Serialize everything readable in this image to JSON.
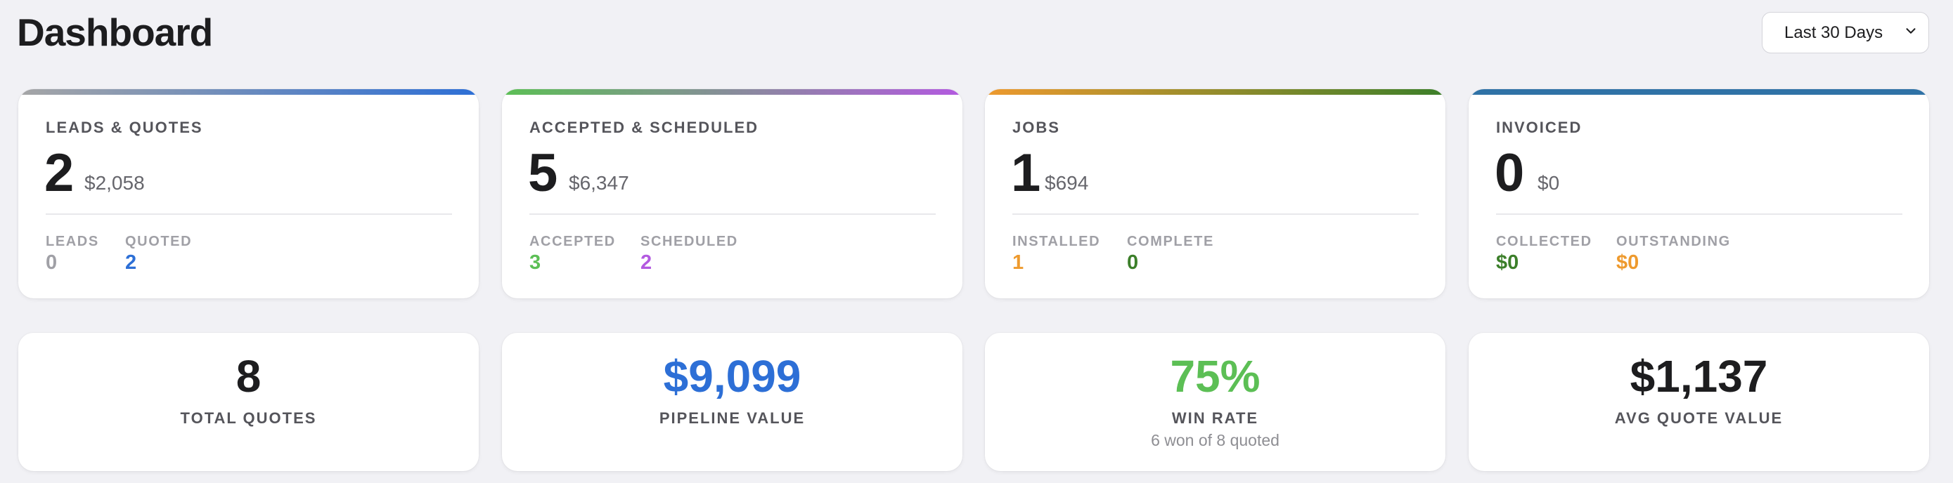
{
  "header": {
    "title": "Dashboard",
    "date_range": {
      "selected": "Last 30 Days"
    }
  },
  "stages": [
    {
      "title": "LEADS & QUOTES",
      "count": "2",
      "amount": "$2,058",
      "sub": [
        {
          "label": "LEADS",
          "value": "0",
          "color": "#a0a0a6"
        },
        {
          "label": "QUOTED",
          "value": "2",
          "color": "#2d6fd6"
        }
      ]
    },
    {
      "title": "ACCEPTED & SCHEDULED",
      "count": "5",
      "amount": "$6,347",
      "sub": [
        {
          "label": "ACCEPTED",
          "value": "3",
          "color": "#5cbf55"
        },
        {
          "label": "SCHEDULED",
          "value": "2",
          "color": "#b35ae0"
        }
      ]
    },
    {
      "title": "JOBS",
      "count": "1",
      "amount": "$694",
      "sub": [
        {
          "label": "INSTALLED",
          "value": "1",
          "color": "#ee9a2e"
        },
        {
          "label": "COMPLETE",
          "value": "0",
          "color": "#3c7f2a"
        }
      ]
    },
    {
      "title": "INVOICED",
      "count": "0",
      "amount": "$0",
      "sub": [
        {
          "label": "COLLECTED",
          "value": "$0",
          "color": "#3c7f2a"
        },
        {
          "label": "OUTSTANDING",
          "value": "$0",
          "color": "#ee9a2e"
        }
      ]
    }
  ],
  "metrics": [
    {
      "value": "8",
      "label": "TOTAL QUOTES",
      "color": "#1d1d1f"
    },
    {
      "value": "$9,099",
      "label": "PIPELINE VALUE",
      "color": "#2d6fd6"
    },
    {
      "value": "75%",
      "label": "WIN RATE",
      "sub": "6 won of 8 quoted",
      "color": "#5cbf55"
    },
    {
      "value": "$1,137",
      "label": "AVG QUOTE VALUE",
      "color": "#1d1d1f"
    }
  ],
  "icons": {
    "dropdown": "chevron-down-icon"
  }
}
